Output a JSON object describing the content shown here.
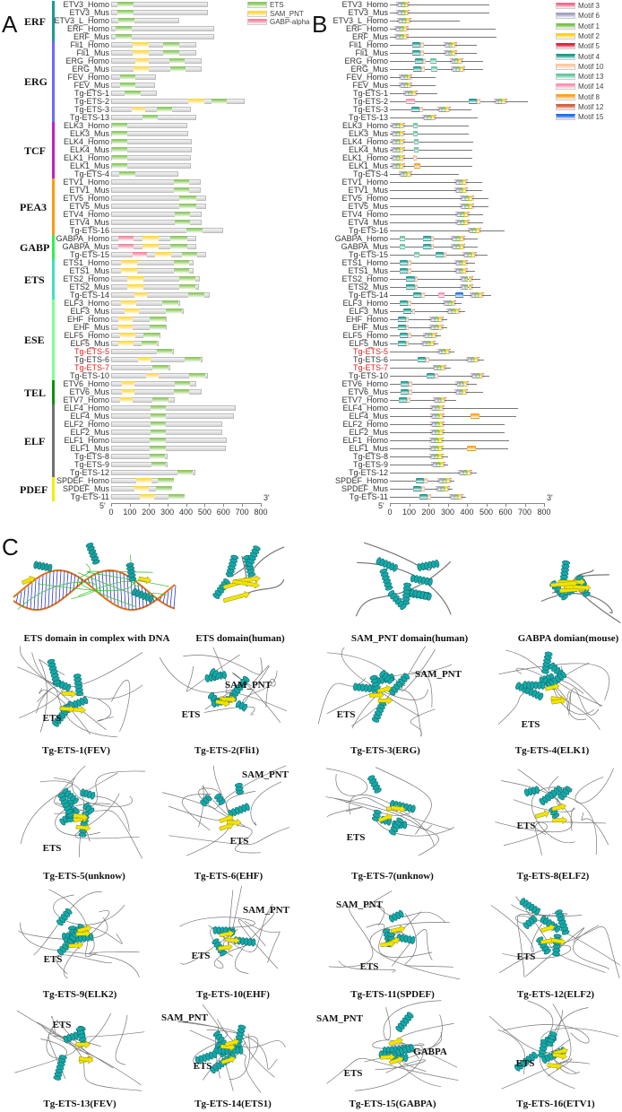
{
  "panels": {
    "a": "A",
    "b": "B",
    "c": "C"
  },
  "colors": {
    "ets": "#8cc860",
    "sam": "#ffd84a",
    "gabp": "#f08aa0",
    "groups": {
      "ERF": "#1a9a96",
      "ERG": "#6a6aff",
      "TCF": "#c020c0",
      "PEA3": "#ff9a10",
      "GABP": "#30f050",
      "ETS": "#40e0c0",
      "ESE": "#80ff90",
      "TEL": "#109010",
      "ELF": "#707070",
      "PDEF": "#f0f000"
    },
    "motifs": {
      "3": "#f06a8a",
      "6": "#a0a0c0",
      "1": "#7cc04a",
      "2": "#ffd020",
      "5": "#e02040",
      "4": "#1a9a90",
      "10": "#ffc8a0",
      "13": "#60c8a0",
      "14": "#ff90b0",
      "8": "#ffa020",
      "12": "#d06040",
      "15": "#2070e0"
    }
  },
  "legend_a": [
    {
      "key": "ets",
      "label": "ETS"
    },
    {
      "key": "sam",
      "label": "SAM_PNT"
    },
    {
      "key": "gabp",
      "label": "GABP-alpha"
    }
  ],
  "legend_b": [
    {
      "id": "3",
      "label": "Motif 3"
    },
    {
      "id": "6",
      "label": "Motif 6"
    },
    {
      "id": "1",
      "label": "Motif 1"
    },
    {
      "id": "2",
      "label": "Motif 2"
    },
    {
      "id": "5",
      "label": "Motif 5"
    },
    {
      "id": "4",
      "label": "Motif 4"
    },
    {
      "id": "10",
      "label": "Motif 10"
    },
    {
      "id": "13",
      "label": "Motif 13"
    },
    {
      "id": "14",
      "label": "Motif 14"
    },
    {
      "id": "8",
      "label": "Motif 8"
    },
    {
      "id": "12",
      "label": "Motif 12"
    },
    {
      "id": "15",
      "label": "Motif 15"
    }
  ],
  "axis": {
    "ticks": [
      "0",
      "100",
      "200",
      "300",
      "400",
      "500",
      "600",
      "700",
      "800"
    ],
    "max": 800,
    "five_prime": "5'",
    "three_prime": "3'"
  },
  "groups": [
    {
      "name": "ERF",
      "count": 5
    },
    {
      "name": "ERG",
      "count": 10
    },
    {
      "name": "TCF",
      "count": 7
    },
    {
      "name": "PEA3",
      "count": 7
    },
    {
      "name": "GABP",
      "count": 3
    },
    {
      "name": "ETS",
      "count": 5
    },
    {
      "name": "ESE",
      "count": 10
    },
    {
      "name": "TEL",
      "count": 3
    },
    {
      "name": "ELF",
      "count": 9
    },
    {
      "name": "PDEF",
      "count": 3
    }
  ],
  "rows": [
    {
      "name": "ETV3_Homo",
      "len": 515,
      "ets": [
        32,
        120
      ]
    },
    {
      "name": "ETV3_Mus",
      "len": 515,
      "ets": [
        32,
        120
      ]
    },
    {
      "name": "ETV3_L_Homo",
      "len": 363,
      "ets": [
        38,
        126
      ]
    },
    {
      "name": "ERF_Homo",
      "len": 549,
      "ets": [
        24,
        112
      ]
    },
    {
      "name": "ERF_Mus",
      "len": 552,
      "ets": [
        24,
        112
      ]
    },
    {
      "name": "Fli1_Homo",
      "len": 453,
      "sam": [
        115,
        203
      ],
      "ets": [
        278,
        363
      ]
    },
    {
      "name": "Fli1_Mus",
      "len": 453,
      "sam": [
        115,
        203
      ],
      "ets": [
        278,
        363
      ]
    },
    {
      "name": "ERG_Homo",
      "len": 482,
      "sam": [
        128,
        203
      ],
      "ets": [
        310,
        395
      ],
      "extra": [
        [
          "13",
          209,
          240
        ]
      ]
    },
    {
      "name": "ERG_Mus",
      "len": 486,
      "sam": [
        120,
        203
      ],
      "ets": [
        317,
        400
      ],
      "extra": [
        [
          "13",
          215,
          246
        ]
      ]
    },
    {
      "name": "FEV_Homo",
      "len": 238,
      "ets": [
        46,
        131
      ]
    },
    {
      "name": "FEV_Mus",
      "len": 237,
      "ets": [
        46,
        131
      ]
    },
    {
      "name": "Tg-ETS-1",
      "len": 246,
      "ets": [
        72,
        158
      ]
    },
    {
      "name": "Tg-ETS-2",
      "len": 715,
      "sam": [
        411,
        496
      ],
      "ets": [
        538,
        619
      ],
      "extra": [
        [
          "14",
          84,
          130
        ]
      ]
    },
    {
      "name": "Tg-ETS-3",
      "len": 424,
      "sam": [
        112,
        184
      ],
      "ets": [
        245,
        328
      ]
    },
    {
      "name": "Tg-ETS-13",
      "len": 456,
      "ets": [
        168,
        251
      ]
    },
    {
      "name": "ELK3_Homo",
      "len": 408,
      "ets": [
        5,
        88
      ],
      "extra": [
        [
          "13",
          121,
          146
        ]
      ]
    },
    {
      "name": "ELK3_Mus",
      "len": 410,
      "ets": [
        5,
        88
      ],
      "extra": [
        [
          "13",
          121,
          146
        ]
      ]
    },
    {
      "name": "ELK4_Homo",
      "len": 432,
      "ets": [
        5,
        88
      ],
      "extra": [
        [
          "13",
          125,
          150
        ]
      ]
    },
    {
      "name": "ELK4_Mus",
      "len": 430,
      "ets": [
        5,
        88
      ],
      "extra": [
        [
          "13",
          125,
          150
        ]
      ]
    },
    {
      "name": "ELK1_Homo",
      "len": 428,
      "ets": [
        5,
        88
      ],
      "extra": [
        [
          "10",
          120,
          138
        ]
      ]
    },
    {
      "name": "ELK1_Mus",
      "len": 428,
      "ets": [
        5,
        88
      ],
      "extra": [
        [
          "8",
          125,
          160
        ]
      ]
    },
    {
      "name": "Tg-ETS-4",
      "len": 357,
      "ets": [
        45,
        131
      ]
    },
    {
      "name": "ETV1_Homo",
      "len": 477,
      "ets": [
        334,
        419
      ]
    },
    {
      "name": "ETV1_Mus",
      "len": 477,
      "ets": [
        334,
        419
      ]
    },
    {
      "name": "ETV5_Homo",
      "len": 510,
      "ets": [
        365,
        453
      ]
    },
    {
      "name": "ETV5_Mus",
      "len": 510,
      "ets": [
        365,
        453
      ]
    },
    {
      "name": "ETV4_Homo",
      "len": 485,
      "ets": [
        341,
        424
      ]
    },
    {
      "name": "ETV4_Mus",
      "len": 485,
      "ets": [
        341,
        424
      ]
    },
    {
      "name": "Tg-ETS-16",
      "len": 597,
      "ets": [
        403,
        488
      ]
    },
    {
      "name": "GABPA_Homo",
      "len": 456,
      "gabp": [
        40,
        118
      ],
      "sam": [
        170,
        254
      ],
      "ets": [
        317,
        405
      ]
    },
    {
      "name": "GABPA_Mus",
      "len": 456,
      "gabp": [
        40,
        118
      ],
      "sam": [
        170,
        254
      ],
      "ets": [
        317,
        405
      ]
    },
    {
      "name": "Tg-ETS-15",
      "len": 509,
      "gabp": [
        115,
        192
      ],
      "sam": [
        235,
        323
      ],
      "ets": [
        379,
        462
      ]
    },
    {
      "name": "ETS1_Homo",
      "len": 443,
      "sam": [
        51,
        139
      ],
      "ets": [
        334,
        419
      ]
    },
    {
      "name": "ETS1_Mus",
      "len": 440,
      "sam": [
        51,
        139
      ],
      "ets": [
        334,
        419
      ]
    },
    {
      "name": "ETS2_Homo",
      "len": 472,
      "sam": [
        86,
        173
      ],
      "ets": [
        362,
        448
      ]
    },
    {
      "name": "ETS2_Mus",
      "len": 469,
      "sam": [
        86,
        173
      ],
      "ets": [
        362,
        448
      ]
    },
    {
      "name": "Tg-ETS-14",
      "len": 525,
      "sam": [
        123,
        192
      ],
      "ets": [
        414,
        498
      ],
      "extra": [
        [
          "14",
          250,
          285
        ],
        [
          "15",
          340,
          380
        ]
      ]
    },
    {
      "name": "ELF3_Homo",
      "len": 371,
      "sam": [
        53,
        133
      ],
      "ets": [
        274,
        360
      ]
    },
    {
      "name": "ELF3_Mus",
      "len": 390,
      "sam": [
        72,
        150
      ],
      "ets": [
        293,
        379
      ]
    },
    {
      "name": "EHF_Homo",
      "len": 299,
      "sam": [
        40,
        117
      ],
      "ets": [
        206,
        293
      ]
    },
    {
      "name": "EHF_Mus",
      "len": 299,
      "sam": [
        40,
        117
      ],
      "ets": [
        206,
        293
      ]
    },
    {
      "name": "ELF5_Homo",
      "len": 264,
      "sam": [
        50,
        131
      ],
      "ets": [
        173,
        261
      ]
    },
    {
      "name": "ELF5_Mus",
      "len": 253,
      "sam": [
        40,
        122
      ],
      "ets": [
        163,
        246
      ]
    },
    {
      "name": "Tg-ETS-5",
      "len": 334,
      "ets": [
        245,
        328
      ],
      "hl": true
    },
    {
      "name": "Tg-ETS-6",
      "len": 490,
      "sam": [
        144,
        211
      ],
      "ets": [
        394,
        480
      ]
    },
    {
      "name": "Tg-ETS-7",
      "len": 318,
      "ets": [
        221,
        309
      ],
      "hl": true
    },
    {
      "name": "Tg-ETS-10",
      "len": 515,
      "sam": [
        189,
        254
      ],
      "ets": [
        418,
        501
      ]
    },
    {
      "name": "ETV6_Homo",
      "len": 453,
      "sam": [
        56,
        123
      ],
      "ets": [
        338,
        424
      ]
    },
    {
      "name": "ETV6_Mus",
      "len": 486,
      "sam": [
        56,
        123
      ],
      "ets": [
        334,
        419
      ]
    },
    {
      "name": "ETV7_Homo",
      "len": 342,
      "sam": [
        48,
        117
      ],
      "ets": [
        222,
        309
      ]
    },
    {
      "name": "ELF4_Homo",
      "len": 664,
      "ets": [
        210,
        291
      ]
    },
    {
      "name": "ELF4_Mus",
      "len": 656,
      "ets": [
        210,
        291
      ],
      "extra": [
        [
          "8",
          420,
          465
        ]
      ]
    },
    {
      "name": "ELF2_Homo",
      "len": 594,
      "ets": [
        210,
        291
      ]
    },
    {
      "name": "ELF2_Mus",
      "len": 594,
      "ets": [
        210,
        291
      ]
    },
    {
      "name": "ELF1_Homo",
      "len": 619,
      "ets": [
        206,
        291
      ]
    },
    {
      "name": "ELF1_Mus",
      "len": 613,
      "ets": [
        206,
        291
      ],
      "extra": [
        [
          "8",
          400,
          445
        ]
      ]
    },
    {
      "name": "Tg-ETS-8",
      "len": 304,
      "ets": [
        206,
        286
      ]
    },
    {
      "name": "Tg-ETS-9",
      "len": 304,
      "ets": [
        214,
        293
      ]
    },
    {
      "name": "Tg-ETS-12",
      "len": 451,
      "ets": [
        355,
        437
      ]
    },
    {
      "name": "SPDEF_Homo",
      "len": 336,
      "sam": [
        134,
        216
      ],
      "ets": [
        248,
        334
      ]
    },
    {
      "name": "SPDEF_Mus",
      "len": 325,
      "sam": [
        123,
        203
      ],
      "ets": [
        238,
        325
      ]
    },
    {
      "name": "Tg-ETS-11",
      "len": 395,
      "sam": [
        155,
        230
      ],
      "ets": [
        307,
        395
      ]
    }
  ],
  "structures": [
    {
      "caption": "ETS domain in complex with DNA",
      "labels": []
    },
    {
      "caption": "ETS domain(human)",
      "labels": []
    },
    {
      "caption": "SAM_PNT domain(human)",
      "labels": []
    },
    {
      "caption": "GABPA domian(mouse)",
      "labels": []
    },
    {
      "caption": "Tg-ETS-1(FEV)",
      "labels": [
        "ETS"
      ]
    },
    {
      "caption": "Tg-ETS-2(Fli1)",
      "labels": [
        "SAM_PNT",
        "ETS"
      ]
    },
    {
      "caption": "Tg-ETS-3(ERG)",
      "labels": [
        "SAM_PNT",
        "ETS"
      ]
    },
    {
      "caption": "Tg-ETS-4(ELK1)",
      "labels": [
        "ETS"
      ]
    },
    {
      "caption": "Tg-ETS-5(unknow)",
      "labels": [
        "ETS"
      ]
    },
    {
      "caption": "Tg-ETS-6(EHF)",
      "labels": [
        "SAM_PNT",
        "ETS"
      ]
    },
    {
      "caption": "Tg-ETS-7(unknow)",
      "labels": [
        "ETS"
      ]
    },
    {
      "caption": "Tg-ETS-8(ELF2)",
      "labels": [
        "ETS"
      ]
    },
    {
      "caption": "Tg-ETS-9(ELK2)",
      "labels": [
        "ETS"
      ]
    },
    {
      "caption": "Tg-ETS-10(EHF)",
      "labels": [
        "SAM_PNT",
        "ETS"
      ]
    },
    {
      "caption": "Tg-ETS-11(SPDEF)",
      "labels": [
        "SAM_PNT",
        "ETS"
      ]
    },
    {
      "caption": "Tg-ETS-12(ELF2)",
      "labels": [
        "ETS"
      ]
    },
    {
      "caption": "Tg-ETS-13(FEV)",
      "labels": [
        "ETS"
      ]
    },
    {
      "caption": "Tg-ETS-14(ETS1)",
      "labels": [
        "SAM_PNT",
        "ETS"
      ]
    },
    {
      "caption": "Tg-ETS-15(GABPA)",
      "labels": [
        "SAM_PNT",
        "GABPA",
        "ETS"
      ]
    },
    {
      "caption": "Tg-ETS-16(ETV1)",
      "labels": [
        "ETS"
      ]
    }
  ]
}
